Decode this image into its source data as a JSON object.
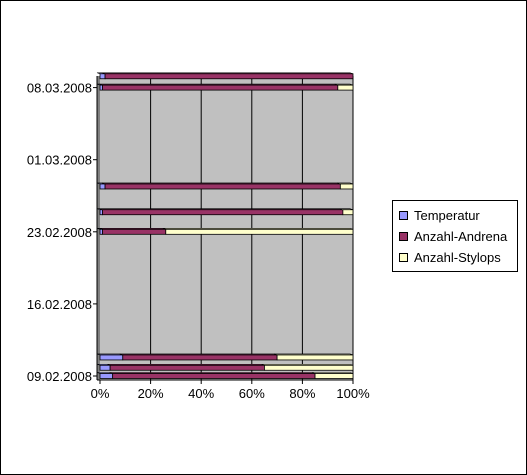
{
  "chart_data": {
    "type": "bar",
    "orientation": "horizontal",
    "stacking": "percent",
    "categories": [
      "09.02.2008",
      "16.02.2008",
      "23.02.2008",
      "01.03.2008",
      "08.03.2008"
    ],
    "x_ticks": [
      "0%",
      "20%",
      "40%",
      "60%",
      "80%",
      "100%"
    ],
    "xlim": [
      0,
      100
    ],
    "grid": true,
    "legend_position": "right",
    "series": [
      {
        "name": "Temperatur",
        "color": "#9999ff"
      },
      {
        "name": "Anzahl-Andrena",
        "color": "#993366"
      },
      {
        "name": "Anzahl-Stylops",
        "color": "#ffffcc"
      }
    ],
    "bars": [
      {
        "date": "09.02.2008",
        "day_offset": 0.0,
        "values": [
          5,
          80,
          15
        ]
      },
      {
        "date": "09.02.2008",
        "day_offset": 0.8,
        "values": [
          4,
          61,
          35
        ]
      },
      {
        "date": "09.02.2008",
        "day_offset": 1.8,
        "values": [
          9,
          61,
          30
        ]
      },
      {
        "date": "23.02.2008",
        "day_offset": 14.0,
        "values": [
          1,
          25,
          74
        ]
      },
      {
        "date": "24.02.2008",
        "day_offset": 15.9,
        "values": [
          1,
          95,
          4
        ]
      },
      {
        "date": "26.02.2008",
        "day_offset": 18.4,
        "values": [
          2,
          93,
          5
        ]
      },
      {
        "date": "08.03.2008",
        "day_offset": 28.0,
        "values": [
          1,
          93,
          6
        ]
      },
      {
        "date": "09.03.2008",
        "day_offset": 29.1,
        "values": [
          2,
          98,
          0
        ]
      }
    ],
    "colors": {
      "plot_background": "#c0c0c0",
      "gridline": "#000000"
    }
  }
}
